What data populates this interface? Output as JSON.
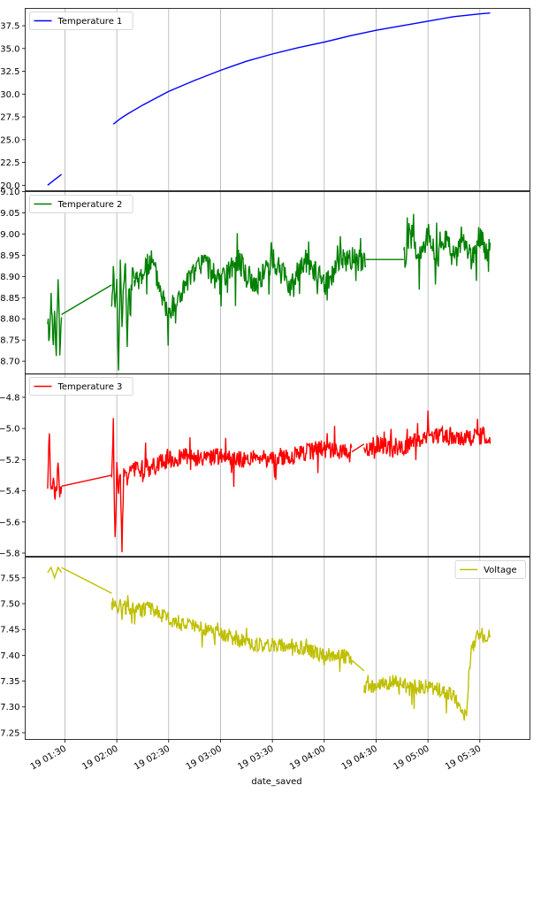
{
  "figure": {
    "xlabel": "date_saved",
    "x_tick_labels": [
      "19 01:30",
      "19 02:00",
      "19 02:30",
      "19 03:00",
      "19 03:30",
      "19 04:00",
      "19 04:30",
      "19 05:00",
      "19 05:30"
    ]
  },
  "chart_data": [
    {
      "type": "line",
      "series": [
        {
          "name": "Temperature 1",
          "color": "#0000ff"
        }
      ],
      "x_unit": "minutes after 19 00:00",
      "legend": "top-left",
      "grid": "x",
      "xlim": [
        "19 01:07",
        "19 05:59"
      ],
      "ylim": [
        19.4,
        39.4
      ],
      "yticks": [
        20.0,
        22.5,
        25.0,
        27.5,
        30.0,
        32.5,
        35.0,
        37.5
      ],
      "ytick_labels": [
        "20.0",
        "22.5",
        "25.0",
        "27.5",
        "30.0",
        "32.5",
        "35.0",
        "37.5"
      ],
      "segments": [
        {
          "x": [
            80,
            82,
            84,
            86,
            88
          ],
          "y": [
            20.0,
            20.3,
            20.6,
            20.9,
            21.2
          ]
        },
        {
          "x": [
            118,
            122,
            126,
            135,
            150,
            165,
            180,
            195,
            210,
            225,
            240,
            255,
            270,
            285,
            300,
            315,
            330,
            336
          ],
          "y": [
            26.7,
            27.3,
            27.8,
            28.8,
            30.3,
            31.5,
            32.6,
            33.6,
            34.4,
            35.1,
            35.7,
            36.4,
            37.0,
            37.5,
            38.0,
            38.5,
            38.8,
            38.9
          ]
        }
      ]
    },
    {
      "type": "line",
      "series": [
        {
          "name": "Temperature 2",
          "color": "#008000"
        }
      ],
      "legend": "top-left",
      "grid": "x",
      "ylim": [
        8.67,
        9.1
      ],
      "yticks": [
        8.7,
        8.75,
        8.8,
        8.85,
        8.9,
        8.95,
        9.0,
        9.05,
        9.1
      ],
      "ytick_labels": [
        "8.70",
        "8.75",
        "8.80",
        "8.85",
        "8.90",
        "8.95",
        "9.00",
        "9.05",
        "9.10"
      ],
      "segments": [
        {
          "x": [
            80,
            81,
            82,
            83,
            84,
            85,
            86,
            87,
            88
          ],
          "y": [
            8.81,
            8.74,
            8.88,
            8.74,
            8.81,
            8.74,
            8.88,
            8.74,
            8.81
          ]
        },
        {
          "x": [
            88,
            117
          ],
          "y": [
            8.81,
            8.88
          ]
        },
        {
          "x": [
            117,
            118,
            119,
            120,
            121,
            122,
            123,
            124,
            125,
            126,
            127,
            128,
            129,
            130
          ],
          "y": [
            8.81,
            8.94,
            8.81,
            8.88,
            8.68,
            8.94,
            8.81,
            8.88,
            8.94,
            8.74,
            8.88,
            8.81,
            8.94,
            8.88
          ]
        },
        {
          "x": [
            130,
            140,
            150,
            160,
            170,
            180,
            190,
            200,
            210,
            220,
            230,
            240,
            250,
            260,
            264
          ],
          "y": [
            8.88,
            8.94,
            8.81,
            8.88,
            8.94,
            8.88,
            8.94,
            8.88,
            8.94,
            8.88,
            8.94,
            8.88,
            8.94,
            8.94,
            8.94
          ]
        },
        {
          "x": [
            264,
            286
          ],
          "y": [
            8.94,
            8.94
          ]
        },
        {
          "x": [
            286,
            290,
            295,
            300,
            305,
            310,
            315,
            320,
            325,
            330,
            335,
            336
          ],
          "y": [
            8.94,
            9.0,
            8.94,
            9.0,
            8.94,
            9.0,
            8.94,
            9.0,
            8.94,
            9.0,
            8.94,
            9.0
          ]
        }
      ]
    },
    {
      "type": "line",
      "series": [
        {
          "name": "Temperature 3",
          "color": "#ff0000"
        }
      ],
      "legend": "top-left",
      "grid": "x",
      "ylim": [
        -5.82,
        -4.65
      ],
      "yticks": [
        -5.8,
        -5.6,
        -5.4,
        -5.2,
        -5.0,
        -4.8
      ],
      "ytick_labels": [
        "−5.8",
        "−5.6",
        "−5.4",
        "−5.2",
        "−5.0",
        "−4.8"
      ],
      "segments": [
        {
          "x": [
            80,
            81,
            82,
            83,
            84,
            85,
            86,
            87,
            88
          ],
          "y": [
            -5.37,
            -4.97,
            -5.43,
            -5.3,
            -5.43,
            -5.37,
            -5.25,
            -5.43,
            -5.37
          ]
        },
        {
          "x": [
            88,
            117
          ],
          "y": [
            -5.37,
            -5.3
          ]
        },
        {
          "x": [
            117,
            118,
            119,
            120,
            121,
            122,
            123,
            124,
            125,
            126,
            127,
            128,
            130
          ],
          "y": [
            -5.3,
            -4.97,
            -5.77,
            -5.25,
            -5.37,
            -5.25,
            -5.77,
            -5.3,
            -5.25,
            -5.37,
            -5.25,
            -5.3,
            -5.27
          ]
        },
        {
          "x": [
            130,
            140,
            150,
            160,
            170,
            180,
            190,
            200,
            210,
            220,
            230,
            240,
            250,
            256
          ],
          "y": [
            -5.27,
            -5.25,
            -5.2,
            -5.18,
            -5.2,
            -5.18,
            -5.2,
            -5.18,
            -5.2,
            -5.18,
            -5.15,
            -5.13,
            -5.15,
            -5.15
          ]
        },
        {
          "x": [
            256,
            263
          ],
          "y": [
            -5.15,
            -5.1
          ]
        },
        {
          "x": [
            263,
            270,
            280,
            290,
            300,
            310,
            320,
            330,
            336
          ],
          "y": [
            -5.15,
            -5.1,
            -5.13,
            -5.1,
            -5.05,
            -5.05,
            -5.05,
            -5.05,
            -5.05
          ]
        }
      ]
    },
    {
      "type": "line",
      "series": [
        {
          "name": "Voltage",
          "color": "#bfbf00"
        }
      ],
      "legend": "top-right",
      "grid": "x",
      "ylim": [
        7.237,
        7.59
      ],
      "yticks": [
        7.25,
        7.3,
        7.35,
        7.4,
        7.45,
        7.5,
        7.55
      ],
      "ytick_labels": [
        "7.25",
        "7.30",
        "7.35",
        "7.40",
        "7.45",
        "7.50",
        "7.55"
      ],
      "segments": [
        {
          "x": [
            80,
            82,
            84,
            86,
            88
          ],
          "y": [
            7.56,
            7.57,
            7.55,
            7.57,
            7.56
          ]
        },
        {
          "x": [
            88,
            117
          ],
          "y": [
            7.57,
            7.52
          ]
        },
        {
          "x": [
            117,
            130,
            140,
            150,
            160,
            170,
            180,
            190,
            200,
            210,
            220,
            230,
            240,
            250,
            256
          ],
          "y": [
            7.5,
            7.49,
            7.49,
            7.47,
            7.46,
            7.45,
            7.44,
            7.43,
            7.42,
            7.42,
            7.42,
            7.41,
            7.4,
            7.4,
            7.39
          ]
        },
        {
          "x": [
            256,
            263
          ],
          "y": [
            7.39,
            7.37
          ]
        },
        {
          "x": [
            263,
            270,
            280,
            290,
            300,
            310,
            315,
            320,
            322,
            325,
            330,
            336
          ],
          "y": [
            7.34,
            7.34,
            7.35,
            7.34,
            7.34,
            7.33,
            7.32,
            7.29,
            7.28,
            7.42,
            7.44,
            7.44
          ]
        }
      ]
    }
  ]
}
